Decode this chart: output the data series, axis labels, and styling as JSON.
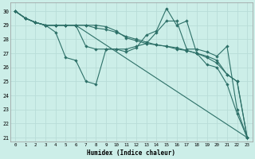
{
  "xlabel": "Humidex (Indice chaleur)",
  "bg_color": "#cceee8",
  "line_color": "#2d7068",
  "grid_color": "#b8ddd8",
  "xlim_min": -0.5,
  "xlim_max": 23.5,
  "ylim_min": 20.7,
  "ylim_max": 30.6,
  "yticks": [
    21,
    22,
    23,
    24,
    25,
    26,
    27,
    28,
    29,
    30
  ],
  "xticks": [
    0,
    1,
    2,
    3,
    4,
    5,
    6,
    7,
    8,
    9,
    10,
    11,
    12,
    13,
    14,
    15,
    16,
    17,
    18,
    19,
    20,
    21,
    22,
    23
  ],
  "lines": [
    {
      "x": [
        0,
        1,
        2,
        3,
        4,
        5,
        6,
        7,
        8,
        9,
        10,
        11,
        12,
        13,
        14,
        15,
        16,
        17,
        18,
        19,
        20,
        21,
        22,
        23
      ],
      "y": [
        30,
        29.5,
        29.2,
        29.0,
        28.5,
        26.7,
        26.5,
        25.0,
        24.8,
        27.3,
        27.3,
        27.1,
        27.4,
        28.3,
        28.6,
        30.2,
        29.0,
        29.3,
        27.0,
        26.2,
        26.0,
        24.8,
        22.7,
        21.0
      ]
    },
    {
      "x": [
        0,
        1,
        2,
        3,
        4,
        5,
        6,
        7,
        8,
        9,
        10,
        11,
        12,
        13,
        14,
        15,
        16,
        17,
        18,
        19,
        20,
        21,
        22,
        23
      ],
      "y": [
        30,
        29.5,
        29.2,
        29.0,
        29.0,
        29.0,
        29.0,
        27.5,
        27.3,
        27.3,
        27.3,
        27.3,
        27.5,
        27.7,
        28.5,
        29.3,
        29.3,
        27.3,
        27.3,
        27.1,
        26.8,
        27.5,
        23.0,
        21.0
      ]
    },
    {
      "x": [
        0,
        1,
        2,
        3,
        4,
        5,
        6,
        7,
        8,
        9,
        10,
        11,
        12,
        13,
        14,
        15,
        16,
        17,
        18,
        19,
        20,
        21,
        22,
        23
      ],
      "y": [
        30,
        29.5,
        29.2,
        29.0,
        29.0,
        29.0,
        29.0,
        29.0,
        28.8,
        28.7,
        28.5,
        28.2,
        28.0,
        27.8,
        27.6,
        27.5,
        27.4,
        27.2,
        27.0,
        26.8,
        26.5,
        25.5,
        25.0,
        21.0
      ]
    },
    {
      "x": [
        0,
        1,
        2,
        3,
        4,
        5,
        6,
        7,
        8,
        9,
        10,
        11,
        12,
        13,
        14,
        15,
        16,
        17,
        18,
        19,
        20,
        21,
        22,
        23
      ],
      "y": [
        30,
        29.5,
        29.2,
        29.0,
        29.0,
        29.0,
        29.0,
        29.0,
        29.0,
        28.9,
        28.6,
        28.1,
        27.9,
        27.7,
        27.6,
        27.5,
        27.3,
        27.2,
        27.0,
        26.7,
        26.3,
        25.5,
        25.0,
        21.0
      ]
    },
    {
      "x": [
        0,
        1,
        2,
        3,
        4,
        5,
        6,
        23
      ],
      "y": [
        30,
        29.5,
        29.2,
        29.0,
        29.0,
        29.0,
        29.0,
        21.0
      ]
    }
  ]
}
